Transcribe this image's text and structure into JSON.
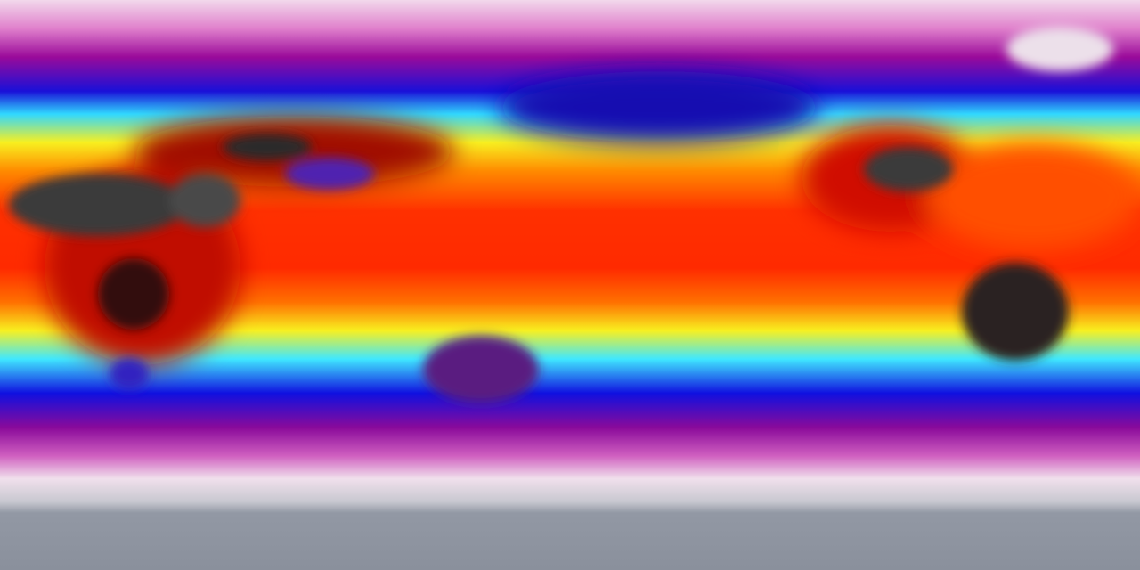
{
  "map": {
    "projection": "equirectangular",
    "type": "global temperature visualization",
    "colors": {
      "polar_ice": "#8f96a3",
      "cold_white": "#f0dcea",
      "pink": "#e070c8",
      "magenta": "#9a0a9a",
      "blue": "#1010e0",
      "cyan": "#30e0ff",
      "yellow": "#f8f820",
      "orange": "#ff7a00",
      "red": "#ff2400",
      "hot_land": "#3a3a3a"
    }
  }
}
